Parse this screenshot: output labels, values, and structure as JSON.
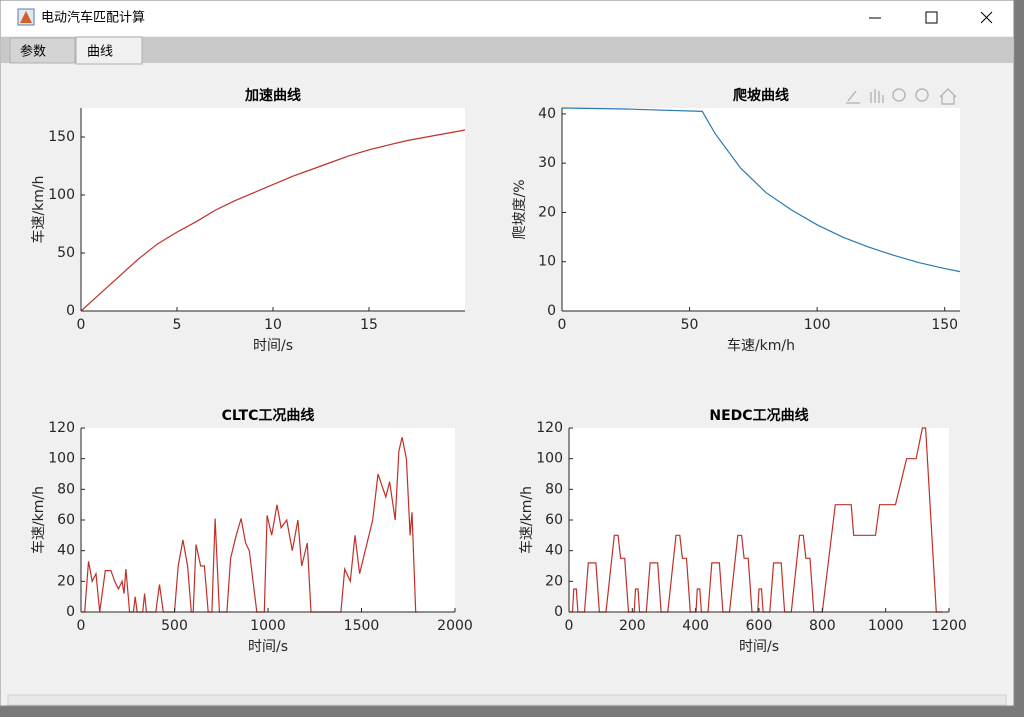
{
  "window": {
    "title": "电动汽车匹配计算",
    "tabs": [
      "参数",
      "曲线"
    ]
  },
  "chart_data": [
    {
      "type": "line",
      "title": "加速曲线",
      "xlabel": "时间/s",
      "ylabel": "车速/km/h",
      "color": "#c0302a",
      "x": [
        0,
        1,
        2,
        3,
        4,
        5,
        6,
        7,
        8,
        9,
        10,
        11,
        12,
        13,
        14,
        15,
        16,
        17,
        18,
        19,
        20
      ],
      "values": [
        0,
        15,
        30,
        45,
        58,
        68,
        77,
        87,
        95,
        102,
        109,
        116,
        122,
        128,
        134,
        139,
        143,
        147,
        150,
        153,
        156
      ],
      "xlim": [
        0,
        20
      ],
      "xticks": [
        0,
        5,
        10,
        15
      ],
      "ylim": [
        0,
        175
      ],
      "yticks": [
        0,
        50,
        100,
        150
      ]
    },
    {
      "type": "line",
      "title": "爬坡曲线",
      "xlabel": "车速/km/h",
      "ylabel": "爬坡度/%",
      "color": "#2a7ab0",
      "x": [
        0,
        25,
        55,
        60,
        70,
        80,
        90,
        100,
        110,
        120,
        130,
        140,
        150,
        156
      ],
      "values": [
        41.2,
        41,
        40.5,
        36,
        29,
        24,
        20.5,
        17.5,
        15,
        13,
        11.3,
        9.8,
        8.6,
        8
      ],
      "xlim": [
        0,
        156
      ],
      "xticks": [
        0,
        50,
        100,
        150
      ],
      "ylim": [
        0,
        41.2
      ],
      "yticks": [
        0,
        10,
        20,
        30,
        40
      ]
    },
    {
      "type": "line",
      "title": "CLTC工况曲线",
      "xlabel": "时间/s",
      "ylabel": "车速/km/h",
      "color": "#c0302a",
      "x": [
        0,
        20,
        40,
        60,
        80,
        100,
        130,
        160,
        180,
        200,
        220,
        230,
        240,
        260,
        280,
        290,
        300,
        330,
        340,
        350,
        400,
        420,
        440,
        500,
        520,
        545,
        570,
        590,
        600,
        615,
        640,
        660,
        680,
        700,
        717,
        740,
        780,
        800,
        830,
        856,
        880,
        900,
        940,
        980,
        995,
        1020,
        1048,
        1070,
        1100,
        1130,
        1160,
        1180,
        1210,
        1230,
        1270,
        1300,
        1390,
        1410,
        1440,
        1465,
        1490,
        1520,
        1560,
        1588,
        1630,
        1650,
        1680,
        1700,
        1717,
        1740,
        1760,
        1770,
        1790,
        1800
      ],
      "values": [
        0,
        0,
        33,
        20,
        25,
        0,
        27,
        27,
        20,
        15,
        20,
        12,
        28,
        0,
        0,
        10,
        0,
        0,
        12,
        0,
        0,
        18,
        0,
        0,
        30,
        47,
        30,
        0,
        0,
        44,
        30,
        30,
        0,
        0,
        61,
        0,
        0,
        35,
        50,
        61,
        45,
        40,
        0,
        0,
        63,
        50,
        70,
        55,
        60,
        40,
        60,
        30,
        45,
        0,
        0,
        0,
        0,
        28,
        20,
        50,
        25,
        40,
        60,
        90,
        75,
        85,
        60,
        105,
        114,
        100,
        50,
        65,
        0,
        0
      ],
      "xlim": [
        0,
        2000
      ],
      "xticks": [
        0,
        500,
        1000,
        1500,
        2000
      ],
      "ylim": [
        0,
        120
      ],
      "yticks": [
        0,
        20,
        40,
        60,
        80,
        100,
        120
      ]
    },
    {
      "type": "line",
      "title": "NEDC工况曲线",
      "xlabel": "时间/s",
      "ylabel": "车速/km/h",
      "color": "#c0302a",
      "x": [
        0,
        11,
        15,
        23,
        28,
        49,
        61,
        85,
        96,
        117,
        143,
        155,
        163,
        176,
        188,
        195,
        206,
        210,
        218,
        223,
        244,
        256,
        280,
        291,
        312,
        338,
        350,
        358,
        371,
        383,
        390,
        401,
        405,
        413,
        418,
        439,
        451,
        475,
        486,
        507,
        533,
        545,
        553,
        566,
        578,
        585,
        596,
        600,
        608,
        613,
        634,
        646,
        670,
        681,
        702,
        728,
        740,
        748,
        761,
        773,
        780,
        800,
        841,
        891,
        899,
        968,
        981,
        1031,
        1066,
        1096,
        1116,
        1126,
        1160,
        1180
      ],
      "values": [
        0,
        0,
        15,
        15,
        0,
        0,
        32,
        32,
        0,
        0,
        50,
        50,
        35,
        35,
        0,
        0,
        0,
        15,
        15,
        0,
        0,
        32,
        32,
        0,
        0,
        50,
        50,
        35,
        35,
        0,
        0,
        0,
        15,
        15,
        0,
        0,
        32,
        32,
        0,
        0,
        50,
        50,
        35,
        35,
        0,
        0,
        0,
        15,
        15,
        0,
        0,
        32,
        32,
        0,
        0,
        50,
        50,
        35,
        35,
        0,
        0,
        0,
        70,
        70,
        50,
        50,
        70,
        70,
        100,
        100,
        120,
        120,
        0,
        0
      ],
      "xlim": [
        0,
        1200
      ],
      "xticks": [
        0,
        200,
        400,
        600,
        800,
        1000,
        1200
      ],
      "ylim": [
        0,
        120
      ],
      "yticks": [
        0,
        20,
        40,
        60,
        80,
        100,
        120
      ]
    }
  ]
}
